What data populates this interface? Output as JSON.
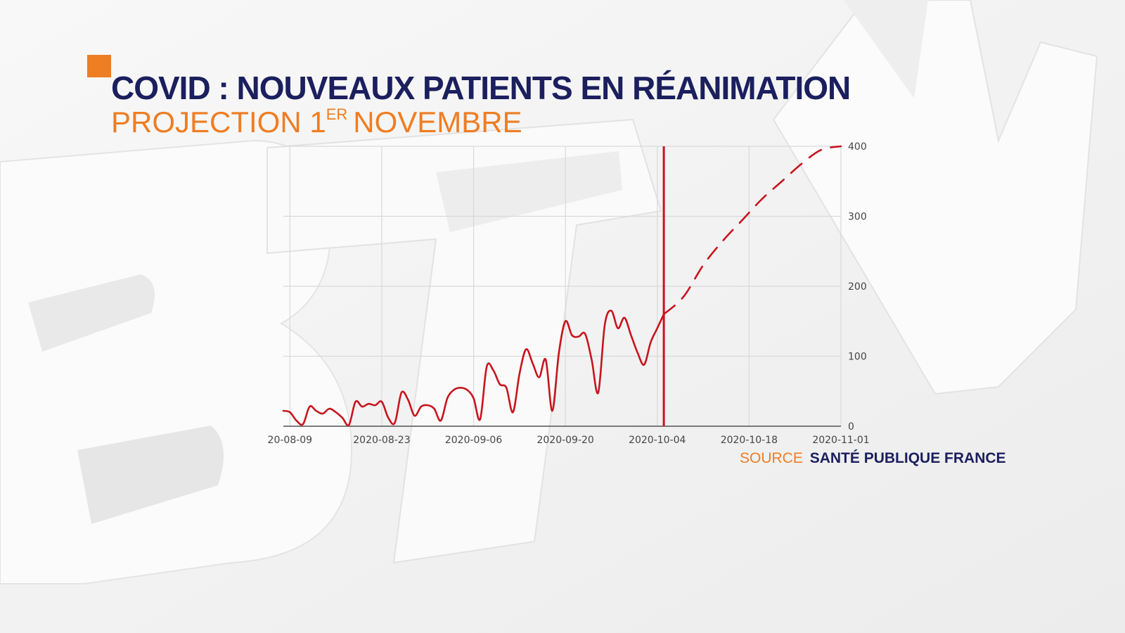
{
  "header": {
    "title": "COVID : NOUVEAUX PATIENTS EN RÉANIMATION",
    "subtitle_main": "PROJECTION 1",
    "subtitle_sup": "ER",
    "subtitle_end": "NOVEMBRE"
  },
  "source": {
    "label": "SOURCE",
    "name": "SANTÉ PUBLIQUE FRANCE"
  },
  "colors": {
    "title": "#1b1f5e",
    "accent": "#ef7d22",
    "series": "#c8141e",
    "grid": "#d9d9d9"
  },
  "chart_data": {
    "type": "line",
    "title": "",
    "xlabel": "",
    "ylabel": "",
    "x_start": "2020-08-09",
    "x_end": "2020-11-01",
    "xlim": [
      "2020-08-08",
      "2020-11-01"
    ],
    "ylim": [
      0,
      400
    ],
    "y_axis_side": "right",
    "grid": true,
    "x_ticks": [
      "20-08-09",
      "2020-08-23",
      "2020-09-06",
      "2020-09-20",
      "2020-10-04",
      "2020-10-18",
      "2020-11-01"
    ],
    "x_tick_dates": [
      "2020-08-09",
      "2020-08-23",
      "2020-09-06",
      "2020-09-20",
      "2020-10-04",
      "2020-10-18",
      "2020-11-01"
    ],
    "y_ticks": [
      0,
      100,
      200,
      300,
      400
    ],
    "vertical_marker": "2020-10-05",
    "series": [
      {
        "style": "solid",
        "x": [
          "2020-08-08",
          "2020-08-09",
          "2020-08-10",
          "2020-08-11",
          "2020-08-12",
          "2020-08-13",
          "2020-08-14",
          "2020-08-15",
          "2020-08-16",
          "2020-08-17",
          "2020-08-18",
          "2020-08-19",
          "2020-08-20",
          "2020-08-21",
          "2020-08-22",
          "2020-08-23",
          "2020-08-24",
          "2020-08-25",
          "2020-08-26",
          "2020-08-27",
          "2020-08-28",
          "2020-08-29",
          "2020-08-30",
          "2020-08-31",
          "2020-09-01",
          "2020-09-02",
          "2020-09-03",
          "2020-09-04",
          "2020-09-05",
          "2020-09-06",
          "2020-09-07",
          "2020-09-08",
          "2020-09-09",
          "2020-09-10",
          "2020-09-11",
          "2020-09-12",
          "2020-09-13",
          "2020-09-14",
          "2020-09-15",
          "2020-09-16",
          "2020-09-17",
          "2020-09-18",
          "2020-09-19",
          "2020-09-20",
          "2020-09-21",
          "2020-09-22",
          "2020-09-23",
          "2020-09-24",
          "2020-09-25",
          "2020-09-26",
          "2020-09-27",
          "2020-09-28",
          "2020-09-29",
          "2020-09-30",
          "2020-10-01",
          "2020-10-02",
          "2020-10-03",
          "2020-10-04",
          "2020-10-05"
        ],
        "y": [
          22,
          20,
          8,
          3,
          28,
          22,
          18,
          25,
          20,
          12,
          2,
          35,
          28,
          32,
          30,
          35,
          12,
          5,
          48,
          38,
          15,
          28,
          30,
          25,
          8,
          40,
          52,
          55,
          52,
          40,
          10,
          85,
          80,
          60,
          55,
          20,
          75,
          110,
          90,
          70,
          95,
          22,
          105,
          150,
          130,
          128,
          132,
          95,
          48,
          145,
          165,
          140,
          155,
          130,
          105,
          88,
          120,
          140,
          160
        ]
      },
      {
        "style": "dashed",
        "x": [
          "2020-10-05",
          "2020-10-08",
          "2020-10-11",
          "2020-10-14",
          "2020-10-17",
          "2020-10-20",
          "2020-10-23",
          "2020-10-26",
          "2020-10-29",
          "2020-11-01"
        ],
        "y": [
          160,
          185,
          230,
          265,
          295,
          325,
          350,
          375,
          395,
          400
        ]
      }
    ]
  }
}
